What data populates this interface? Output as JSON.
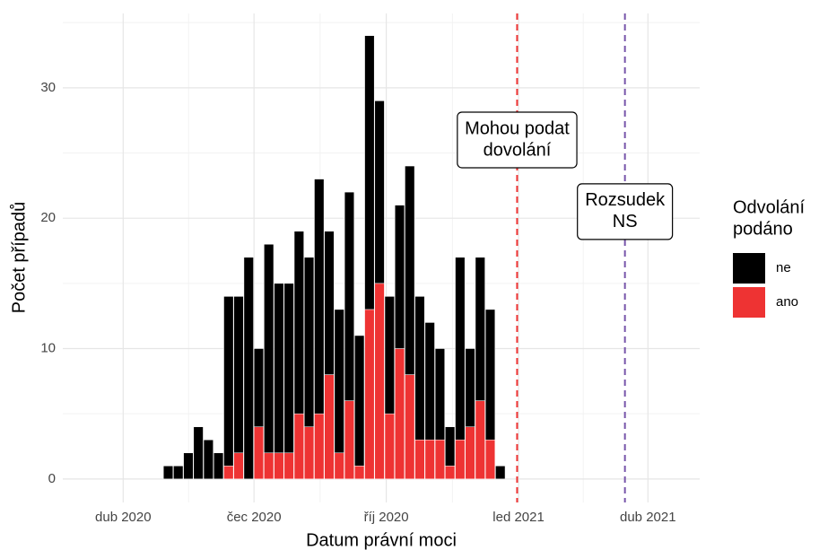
{
  "chart_data": {
    "type": "histogram",
    "x_label": "Datum právní moci",
    "y_label": "Počet případů",
    "bins": [
      "2020-04-29",
      "2020-05-06",
      "2020-05-13",
      "2020-05-20",
      "2020-05-27",
      "2020-06-03",
      "2020-06-10",
      "2020-06-17",
      "2020-06-24",
      "2020-07-01",
      "2020-07-08",
      "2020-07-15",
      "2020-07-22",
      "2020-07-29",
      "2020-08-05",
      "2020-08-12",
      "2020-08-19",
      "2020-08-26",
      "2020-09-02",
      "2020-09-09",
      "2020-09-16",
      "2020-09-23",
      "2020-09-30",
      "2020-10-07",
      "2020-10-14",
      "2020-10-21",
      "2020-10-28",
      "2020-11-04",
      "2020-11-11",
      "2020-11-18",
      "2020-11-25",
      "2020-12-02",
      "2020-12-09",
      "2020-12-16",
      "2020-12-23"
    ],
    "series": [
      {
        "name": "ne",
        "color": "#000000",
        "values": [
          1,
          1,
          2,
          4,
          3,
          2,
          13,
          12,
          17,
          6,
          16,
          13,
          13,
          14,
          13,
          18,
          11,
          11,
          16,
          10,
          21,
          14,
          9,
          11,
          16,
          11,
          9,
          7,
          3,
          14,
          6,
          11,
          10,
          1
        ]
      },
      {
        "name": "ano",
        "color": "#ee3333",
        "values": [
          0,
          0,
          0,
          0,
          0,
          0,
          1,
          2,
          0,
          4,
          2,
          2,
          2,
          5,
          4,
          5,
          8,
          2,
          6,
          1,
          13,
          15,
          5,
          10,
          8,
          3,
          3,
          3,
          1,
          3,
          4,
          6,
          3,
          0
        ]
      }
    ],
    "stacked": true,
    "legend_title": [
      "Odvolání",
      "podáno"
    ],
    "xlim": [
      "2020-02-19",
      "2021-05-07"
    ],
    "xticks": [
      {
        "value": "2020-04-01",
        "label": "dub 2020"
      },
      {
        "value": "2020-07-01",
        "label": "čec 2020"
      },
      {
        "value": "2020-10-01",
        "label": "říj 2020"
      },
      {
        "value": "2021-01-01",
        "label": "led 2021"
      },
      {
        "value": "2021-04-01",
        "label": "dub 2021"
      }
    ],
    "ylim": [
      -1.8,
      35.7
    ],
    "yticks": [
      0,
      10,
      20,
      30
    ],
    "grid": true,
    "vlines": [
      {
        "x": "2020-12-31",
        "color": "#ee3333",
        "label": [
          "Mohou podat",
          "dovolání"
        ],
        "label_y": 26
      },
      {
        "x": "2021-03-16",
        "color": "#7755aa",
        "label": [
          "Rozsudek",
          "NS"
        ],
        "label_y": 20.5
      }
    ]
  }
}
